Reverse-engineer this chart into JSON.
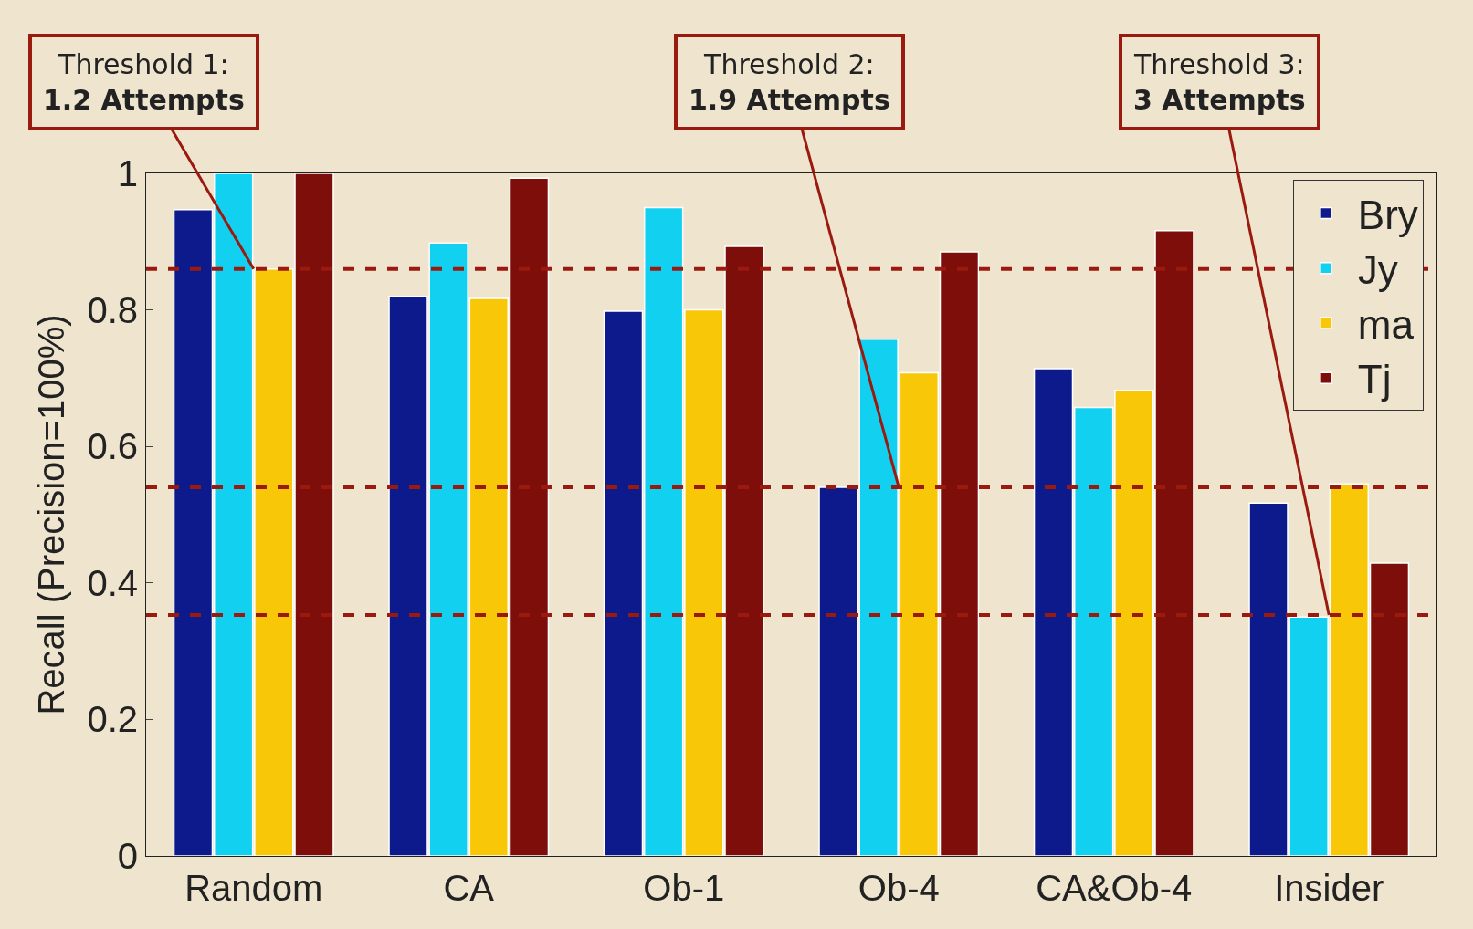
{
  "chart_data": {
    "type": "bar",
    "ylabel": "Recall (Precision=100%)",
    "categories": [
      "Random",
      "CA",
      "Ob-1",
      "Ob-4",
      "CA&Ob-4",
      "Insider"
    ],
    "series": [
      {
        "name": "Bry",
        "color": "#0c1a8c",
        "values": [
          0.947,
          0.82,
          0.798,
          0.54,
          0.714,
          0.517
        ]
      },
      {
        "name": "Jy",
        "color": "#12d0f0",
        "values": [
          1.0,
          0.898,
          0.95,
          0.757,
          0.657,
          0.35
        ]
      },
      {
        "name": "ma",
        "color": "#f8c808",
        "values": [
          0.86,
          0.817,
          0.8,
          0.708,
          0.682,
          0.545
        ]
      },
      {
        "name": "Tj",
        "color": "#7e0e0a",
        "values": [
          1.0,
          0.993,
          0.893,
          0.885,
          0.916,
          0.429
        ]
      }
    ],
    "ylim": [
      0,
      1
    ],
    "yticks": [
      0,
      0.2,
      0.4,
      0.6,
      0.8,
      1
    ],
    "grid": false,
    "legend": "top right",
    "ref_lines": [
      {
        "axis": "y",
        "value": 0.86,
        "color": "#9a1a10",
        "line_style": "dashed"
      },
      {
        "axis": "y",
        "value": 0.54,
        "color": "#9a1a10",
        "line_style": "dashed"
      },
      {
        "axis": "y",
        "value": 0.353,
        "color": "#9a1a10",
        "line_style": "dashed"
      }
    ],
    "annotations": [
      {
        "text": "Threshold 1:\n1.2 Attempts",
        "x": "Random",
        "y": 0.86
      },
      {
        "text": "Threshold 2:\n1.9 Attempts",
        "x": "Ob-4",
        "y": 0.54
      },
      {
        "text": "Threshold 3:\n3 Attempts",
        "x": "Insider",
        "y": 0.353
      }
    ]
  }
}
